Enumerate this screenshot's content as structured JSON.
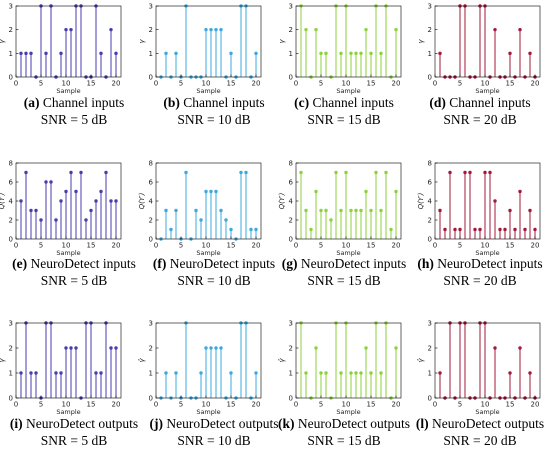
{
  "figure": {
    "colors": {
      "snr5": "#4a3cb0",
      "snr10": "#3ba8e0",
      "snr15": "#8cd23a",
      "snr20": "#a3183c",
      "axis": "#000000"
    }
  },
  "chart_data": [
    {
      "type": "stem",
      "label": "(a)",
      "caption": "Channel inputs",
      "snr": "SNR = 5 dB",
      "ylabel": "γ",
      "xlabel": "",
      "xlim": [
        0,
        21
      ],
      "ylim": [
        0,
        3
      ],
      "x": [
        1,
        2,
        3,
        4,
        5,
        6,
        7,
        8,
        9,
        10,
        11,
        12,
        13,
        14,
        15,
        16,
        17,
        18,
        19,
        20
      ],
      "values": [
        1,
        1,
        1,
        0,
        3,
        1,
        3,
        0,
        1,
        2,
        2,
        3,
        3,
        0,
        0,
        3,
        1,
        0,
        2,
        1
      ]
    },
    {
      "type": "stem",
      "label": "(b)",
      "caption": "Channel inputs",
      "snr": "SNR = 10 dB",
      "ylabel": "γ",
      "xlabel": "",
      "xlim": [
        0,
        21
      ],
      "ylim": [
        0,
        3
      ],
      "x": [
        1,
        2,
        3,
        4,
        5,
        6,
        7,
        8,
        9,
        10,
        11,
        12,
        13,
        14,
        15,
        16,
        17,
        18,
        19,
        20
      ],
      "values": [
        0,
        1,
        0,
        1,
        0,
        3,
        0,
        0,
        0,
        2,
        2,
        2,
        2,
        0,
        1,
        0,
        3,
        3,
        0,
        1
      ]
    },
    {
      "type": "stem",
      "label": "(c)",
      "caption": "Channel inputs",
      "snr": "SNR = 15 dB",
      "ylabel": "γ",
      "xlabel": "",
      "xlim": [
        0,
        21
      ],
      "ylim": [
        0,
        3
      ],
      "x": [
        1,
        2,
        3,
        4,
        5,
        6,
        7,
        8,
        9,
        10,
        11,
        12,
        13,
        14,
        15,
        16,
        17,
        18,
        19,
        20
      ],
      "values": [
        3,
        2,
        0,
        2,
        1,
        1,
        0,
        3,
        1,
        3,
        1,
        1,
        1,
        2,
        1,
        3,
        1,
        3,
        0,
        2
      ]
    },
    {
      "type": "stem",
      "label": "(d)",
      "caption": "Channel inputs",
      "snr": "SNR = 20 dB",
      "ylabel": "γ",
      "xlabel": "",
      "xlim": [
        0,
        21
      ],
      "ylim": [
        0,
        3
      ],
      "x": [
        1,
        2,
        3,
        4,
        5,
        6,
        7,
        8,
        9,
        10,
        11,
        12,
        13,
        14,
        15,
        16,
        17,
        18,
        19,
        20
      ],
      "values": [
        1,
        0,
        0,
        0,
        3,
        3,
        0,
        0,
        3,
        3,
        0,
        2,
        0,
        0,
        1,
        0,
        2,
        0,
        1,
        0
      ]
    },
    {
      "type": "stem",
      "label": "(e)",
      "caption": "NeuroDetect inputs",
      "snr": "SNR = 5 dB",
      "ylabel": "Q(Y′)",
      "xlabel": "",
      "xlim": [
        0,
        21
      ],
      "ylim": [
        0,
        8
      ],
      "x": [
        1,
        2,
        3,
        4,
        5,
        6,
        7,
        8,
        9,
        10,
        11,
        12,
        13,
        14,
        15,
        16,
        17,
        18,
        19,
        20
      ],
      "values": [
        4,
        7,
        3,
        3,
        2,
        6,
        6,
        2,
        4,
        5,
        7,
        5,
        7,
        2,
        3,
        4,
        5,
        7,
        4,
        4
      ]
    },
    {
      "type": "stem",
      "label": "(f)",
      "caption": "NeuroDetect inputs",
      "snr": "SNR = 10 dB",
      "ylabel": "Q(Y′)",
      "xlabel": "",
      "xlim": [
        0,
        21
      ],
      "ylim": [
        0,
        8
      ],
      "x": [
        1,
        2,
        3,
        4,
        5,
        6,
        7,
        8,
        9,
        10,
        11,
        12,
        13,
        14,
        15,
        16,
        17,
        18,
        19,
        20
      ],
      "values": [
        0,
        3,
        1,
        3,
        0,
        7,
        0,
        3,
        2,
        5,
        5,
        5,
        3,
        2,
        1,
        0,
        7,
        7,
        1,
        1
      ]
    },
    {
      "type": "stem",
      "label": "(g)",
      "caption": "NeuroDetect inputs",
      "snr": "SNR = 15 dB",
      "ylabel": "Q(Y′)",
      "xlabel": "",
      "xlim": [
        0,
        21
      ],
      "ylim": [
        0,
        8
      ],
      "x": [
        1,
        2,
        3,
        4,
        5,
        6,
        7,
        8,
        9,
        10,
        11,
        12,
        13,
        14,
        15,
        16,
        17,
        18,
        19,
        20
      ],
      "values": [
        7,
        3,
        1,
        5,
        3,
        3,
        2,
        7,
        3,
        7,
        3,
        3,
        3,
        5,
        3,
        7,
        3,
        7,
        1,
        5
      ]
    },
    {
      "type": "stem",
      "label": "(h)",
      "caption": "NeuroDetect inputs",
      "snr": "SNR = 20 dB",
      "ylabel": "Q(Y′)",
      "xlabel": "",
      "xlim": [
        0,
        21
      ],
      "ylim": [
        0,
        8
      ],
      "x": [
        1,
        2,
        3,
        4,
        5,
        6,
        7,
        8,
        9,
        10,
        11,
        12,
        13,
        14,
        15,
        16,
        17,
        18,
        19,
        20
      ],
      "values": [
        3,
        1,
        7,
        1,
        1,
        7,
        7,
        1,
        1,
        7,
        7,
        4,
        1,
        1,
        3,
        1,
        5,
        1,
        3,
        1
      ]
    },
    {
      "type": "stem",
      "label": "(i)",
      "caption": "NeuroDetect outputs",
      "snr": "SNR = 5 dB",
      "ylabel": "γ̂",
      "xlabel": "",
      "xlim": [
        0,
        21
      ],
      "ylim": [
        0,
        3
      ],
      "x": [
        1,
        2,
        3,
        4,
        5,
        6,
        7,
        8,
        9,
        10,
        11,
        12,
        13,
        14,
        15,
        16,
        17,
        18,
        19,
        20
      ],
      "values": [
        1,
        3,
        1,
        1,
        0,
        3,
        3,
        1,
        1,
        2,
        2,
        2,
        0,
        3,
        3,
        1,
        1,
        3,
        2,
        2
      ]
    },
    {
      "type": "stem",
      "label": "(j)",
      "caption": "NeuroDetect outputs",
      "snr": "SNR = 10 dB",
      "ylabel": "γ̂",
      "xlabel": "",
      "xlim": [
        0,
        21
      ],
      "ylim": [
        0,
        3
      ],
      "x": [
        1,
        2,
        3,
        4,
        5,
        6,
        7,
        8,
        9,
        10,
        11,
        12,
        13,
        14,
        15,
        16,
        17,
        18,
        19,
        20
      ],
      "values": [
        0,
        1,
        0,
        1,
        0,
        3,
        0,
        0,
        1,
        2,
        2,
        2,
        2,
        0,
        1,
        0,
        3,
        3,
        0,
        1
      ]
    },
    {
      "type": "stem",
      "label": "(k)",
      "caption": "NeuroDetect outputs",
      "snr": "SNR = 15 dB",
      "ylabel": "γ̂",
      "xlabel": "",
      "xlim": [
        0,
        21
      ],
      "ylim": [
        0,
        3
      ],
      "x": [
        1,
        2,
        3,
        4,
        5,
        6,
        7,
        8,
        9,
        10,
        11,
        12,
        13,
        14,
        15,
        16,
        17,
        18,
        19,
        20
      ],
      "values": [
        3,
        1,
        0,
        2,
        1,
        1,
        0,
        3,
        1,
        3,
        1,
        1,
        1,
        2,
        1,
        3,
        1,
        3,
        0,
        2
      ]
    },
    {
      "type": "stem",
      "label": "(l)",
      "caption": "NeuroDetect outputs",
      "snr": "SNR = 20 dB",
      "ylabel": "γ̂",
      "xlabel": "",
      "xlim": [
        0,
        21
      ],
      "ylim": [
        0,
        3
      ],
      "x": [
        1,
        2,
        3,
        4,
        5,
        6,
        7,
        8,
        9,
        10,
        11,
        12,
        13,
        14,
        15,
        16,
        17,
        18,
        19,
        20
      ],
      "values": [
        1,
        0,
        3,
        0,
        3,
        3,
        0,
        0,
        3,
        3,
        0,
        2,
        0,
        0,
        1,
        0,
        2,
        0,
        1,
        0
      ]
    }
  ],
  "axes": {
    "xtick_labels": [
      "0",
      "5",
      "10",
      "15",
      "20"
    ],
    "xtick_values": [
      0,
      5,
      10,
      15,
      20
    ],
    "xlabel_text": "Sample",
    "ytick_values_gamma": [
      0,
      1,
      2,
      3
    ],
    "ytick_values_q": [
      0,
      2,
      4,
      6,
      8
    ]
  }
}
